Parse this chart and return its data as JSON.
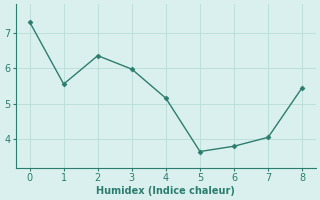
{
  "x": [
    0,
    1,
    2,
    3,
    4,
    5,
    6,
    7,
    8
  ],
  "y": [
    7.3,
    5.55,
    6.35,
    5.97,
    5.15,
    3.65,
    3.8,
    4.05,
    5.45
  ],
  "line_color": "#2d7d6e",
  "marker": "D",
  "marker_size": 2.5,
  "xlabel": "Humidex (Indice chaleur)",
  "xlabel_fontsize": 7,
  "xlim": [
    -0.4,
    8.4
  ],
  "ylim": [
    3.2,
    7.8
  ],
  "yticks": [
    4,
    5,
    6,
    7
  ],
  "xticks": [
    0,
    1,
    2,
    3,
    4,
    5,
    6,
    7,
    8
  ],
  "bg_color": "#d9f0ee",
  "grid_color": "#b8ddd8",
  "tick_color": "#2d7d6e",
  "spine_color": "#2d7d6e",
  "tick_fontsize": 7,
  "linewidth": 1.0
}
